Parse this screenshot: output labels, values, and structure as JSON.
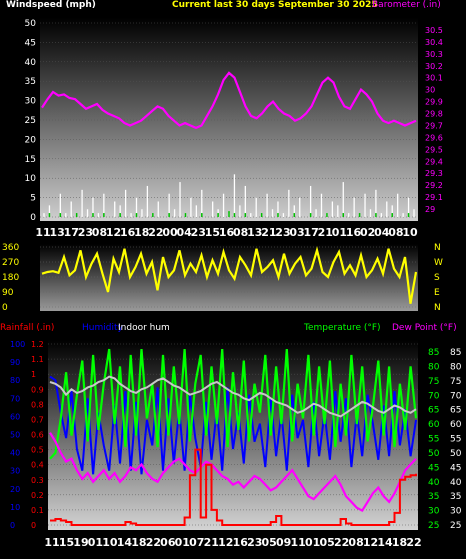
{
  "header": {
    "left": "Windspeed (mph)",
    "center": "Current last 30 days September 30 2025",
    "right": "Barometer (.in)"
  },
  "colors": {
    "background": "#000000",
    "windspeed": "#ffffff",
    "wind_avg": "#00c000",
    "barometer": "#ff00ff",
    "wind_dir": "#ffff00",
    "rainfall": "#ff0000",
    "humidity": "#0000ff",
    "indoor_humidity": "#c8c8c8",
    "temperature": "#00ff00",
    "dew_point": "#ff00ff",
    "title": "#ffff00"
  },
  "chart_data": [
    {
      "type": "line",
      "title": "",
      "y_left_label": "Windspeed (mph)",
      "y_right_label": "Barometer (.in)",
      "y_left_ticks": [
        "0",
        "5",
        "10",
        "15",
        "20",
        "25",
        "30",
        "35",
        "40",
        "45",
        "50"
      ],
      "y_left_range": [
        0,
        50
      ],
      "y_right_ticks": [
        "29",
        "29.1",
        "29.2",
        "29.3",
        "29.4",
        "29.5",
        "29.6",
        "29.7",
        "29.8",
        "29.9",
        "30",
        "30.1",
        "30.2",
        "30.3",
        "30.4",
        "30.5"
      ],
      "y_right_range": [
        28.9,
        30.6
      ],
      "x_tick_labels": [
        "11",
        "13",
        "17",
        "23",
        "08",
        "12",
        "16",
        "18",
        "22",
        "00",
        "04",
        "23",
        "15",
        "16",
        "08",
        "13",
        "21",
        "23",
        "03",
        "17",
        "21",
        "01",
        "16",
        "02",
        "04",
        "08",
        "10"
      ],
      "series": [
        {
          "name": "Barometer",
          "axis": "right",
          "values": [
            29.85,
            29.92,
            29.98,
            29.95,
            29.96,
            29.93,
            29.92,
            29.88,
            29.84,
            29.86,
            29.88,
            29.83,
            29.8,
            29.78,
            29.76,
            29.72,
            29.7,
            29.72,
            29.74,
            29.78,
            29.82,
            29.86,
            29.84,
            29.78,
            29.74,
            29.7,
            29.72,
            29.7,
            29.68,
            29.7,
            29.78,
            29.86,
            29.96,
            30.08,
            30.14,
            30.1,
            29.98,
            29.86,
            29.78,
            29.76,
            29.8,
            29.86,
            29.9,
            29.84,
            29.8,
            29.78,
            29.74,
            29.76,
            29.8,
            29.86,
            29.96,
            30.06,
            30.1,
            30.06,
            29.94,
            29.86,
            29.84,
            29.92,
            30.0,
            29.96,
            29.9,
            29.8,
            29.74,
            29.72,
            29.74,
            29.72,
            29.7,
            29.72,
            29.74
          ]
        },
        {
          "name": "Windspeed",
          "axis": "left",
          "values": [
            1,
            3,
            0,
            6,
            1,
            4,
            0,
            7,
            2,
            5,
            1,
            6,
            0,
            4,
            3,
            7,
            1,
            5,
            2,
            8,
            1,
            4,
            0,
            6,
            2,
            9,
            1,
            5,
            3,
            7,
            0,
            4,
            2,
            6,
            1,
            11,
            3,
            8,
            1,
            5,
            0,
            6,
            2,
            4,
            1,
            7,
            3,
            5,
            0,
            8,
            2,
            6,
            1,
            4,
            3,
            9,
            1,
            5,
            0,
            6,
            2,
            7,
            1,
            4,
            3,
            6,
            1,
            5,
            2
          ]
        },
        {
          "name": "Wind average",
          "axis": "left",
          "values": [
            0,
            0.5,
            0,
            0.5,
            0,
            0,
            0.5,
            0,
            0,
            0.5,
            0,
            0.5,
            0,
            0,
            0.5,
            0,
            0,
            0.5,
            0,
            0,
            0.5,
            0,
            0,
            0.5,
            0,
            0,
            0.5,
            0,
            0,
            0.5,
            0,
            0,
            0.5,
            0,
            1,
            0.5,
            0,
            0.5,
            0,
            0,
            0.5,
            0,
            0,
            0.5,
            0,
            0,
            0.5,
            0,
            0,
            0.5,
            0,
            0,
            0.5,
            0,
            0,
            0.5,
            0,
            0,
            0.5,
            0,
            0,
            0.5,
            0,
            0,
            0.5,
            0,
            0,
            0.5,
            0
          ]
        }
      ]
    },
    {
      "type": "line",
      "title": "",
      "y_left_ticks": [
        "360",
        "270",
        "180",
        "90",
        "0"
      ],
      "y_left_range": [
        0,
        360
      ],
      "y_right_ticks": [
        "N",
        "W",
        "S",
        "E",
        "N"
      ],
      "series": [
        {
          "name": "Wind direction",
          "values": [
            200,
            210,
            215,
            205,
            300,
            190,
            220,
            340,
            180,
            260,
            320,
            200,
            90,
            290,
            210,
            350,
            180,
            240,
            320,
            200,
            270,
            100,
            300,
            180,
            220,
            340,
            190,
            260,
            210,
            310,
            180,
            280,
            200,
            330,
            220,
            170,
            300,
            250,
            190,
            350,
            210,
            240,
            280,
            180,
            320,
            200,
            260,
            300,
            190,
            230,
            340,
            210,
            180,
            270,
            330,
            200,
            250,
            190,
            310,
            180,
            220,
            290,
            200,
            350,
            230,
            180,
            300,
            20,
            210
          ]
        }
      ]
    },
    {
      "type": "line",
      "title": "",
      "y_left_label": "Rainfall (.in)",
      "y_left_ticks": [
        "0",
        "0.1",
        "0.2",
        "0.3",
        "0.4",
        "0.5",
        "0.6",
        "0.7",
        "0.8",
        "0.9",
        "1",
        "1.1",
        "1.2"
      ],
      "y_left_range": [
        0,
        1.2
      ],
      "y_humidity_ticks": [
        "0",
        "10",
        "20",
        "30",
        "40",
        "50",
        "60",
        "70",
        "80",
        "90",
        "100"
      ],
      "y_humidity_range": [
        0,
        100
      ],
      "y_right_ticks": [
        "25",
        "30",
        "35",
        "40",
        "45",
        "50",
        "55",
        "60",
        "65",
        "70",
        "75",
        "80",
        "85"
      ],
      "y_right_range": [
        25,
        85
      ],
      "legend": [
        "Rainfall (.in)",
        "Humidity",
        "Indoor hum",
        "Temperature (°F)",
        "Dew Point (°F)"
      ],
      "x_tick_labels": [
        "11",
        "15",
        "19",
        "01",
        "10",
        "14",
        "18",
        "22",
        "06",
        "01",
        "07",
        "21",
        "12",
        "16",
        "23",
        "05",
        "09",
        "11",
        "01",
        "05",
        "22",
        "08",
        "12",
        "14",
        "18",
        "22"
      ],
      "series": [
        {
          "name": "Temperature",
          "axis": "right",
          "values": [
            48,
            50,
            62,
            78,
            56,
            70,
            82,
            54,
            84,
            58,
            74,
            86,
            60,
            80,
            52,
            84,
            56,
            86,
            62,
            74,
            52,
            84,
            56,
            80,
            60,
            86,
            54,
            74,
            84,
            56,
            80,
            60,
            86,
            52,
            78,
            58,
            82,
            54,
            74,
            64,
            84,
            56,
            80,
            60,
            86,
            54,
            74,
            62,
            84,
            56,
            80,
            60,
            82,
            52,
            74,
            56,
            84,
            60,
            80,
            54,
            66,
            82,
            56,
            80,
            52,
            74,
            58,
            80,
            62
          ]
        },
        {
          "name": "Humidity",
          "axis": "humidity",
          "values": [
            82,
            80,
            62,
            48,
            74,
            42,
            30,
            70,
            28,
            62,
            44,
            30,
            66,
            34,
            74,
            30,
            68,
            28,
            58,
            44,
            76,
            30,
            70,
            34,
            64,
            30,
            72,
            48,
            32,
            68,
            36,
            64,
            30,
            76,
            42,
            62,
            34,
            72,
            46,
            56,
            32,
            70,
            38,
            62,
            30,
            72,
            48,
            58,
            32,
            68,
            38,
            62,
            36,
            74,
            46,
            70,
            32,
            62,
            38,
            72,
            56,
            36,
            66,
            38,
            74,
            44,
            64,
            38,
            58
          ]
        },
        {
          "name": "Indoor hum",
          "axis": "humidity",
          "values": [
            79,
            78,
            76,
            72,
            75,
            73,
            74,
            76,
            77,
            79,
            80,
            82,
            81,
            78,
            76,
            74,
            73,
            75,
            76,
            78,
            80,
            81,
            79,
            77,
            76,
            74,
            72,
            73,
            74,
            76,
            78,
            79,
            77,
            75,
            73,
            72,
            70,
            69,
            71,
            73,
            72,
            70,
            68,
            67,
            66,
            64,
            62,
            63,
            65,
            67,
            66,
            64,
            62,
            61,
            60,
            62,
            64,
            66,
            68,
            67,
            65,
            63,
            62,
            64,
            66,
            65,
            63,
            62,
            64
          ]
        },
        {
          "name": "Dew Point",
          "axis": "right",
          "values": [
            57,
            54,
            50,
            47,
            48,
            44,
            41,
            43,
            40,
            42,
            44,
            41,
            43,
            40,
            42,
            45,
            44,
            46,
            43,
            41,
            40,
            43,
            45,
            47,
            48,
            46,
            44,
            43,
            45,
            47,
            46,
            44,
            42,
            41,
            39,
            40,
            38,
            40,
            42,
            41,
            39,
            37,
            38,
            40,
            42,
            44,
            41,
            38,
            35,
            34,
            36,
            38,
            40,
            42,
            39,
            35,
            33,
            31,
            30,
            33,
            36,
            38,
            35,
            33,
            36,
            40,
            44,
            46,
            48
          ]
        },
        {
          "name": "Rainfall",
          "axis": "left",
          "values": [
            0.03,
            0.04,
            0.03,
            0.02,
            0,
            0,
            0,
            0,
            0,
            0,
            0,
            0,
            0,
            0,
            0.02,
            0.01,
            0,
            0,
            0,
            0,
            0,
            0,
            0,
            0,
            0,
            0.05,
            0.33,
            0.5,
            0.05,
            0.4,
            0.1,
            0.03,
            0,
            0,
            0,
            0,
            0,
            0,
            0,
            0,
            0,
            0.02,
            0.06,
            0,
            0,
            0,
            0,
            0,
            0,
            0,
            0,
            0,
            0,
            0,
            0.04,
            0.01,
            0,
            0,
            0,
            0,
            0,
            0,
            0,
            0.02,
            0.08,
            0.3,
            0.32,
            0.33,
            0.34
          ]
        }
      ]
    }
  ]
}
